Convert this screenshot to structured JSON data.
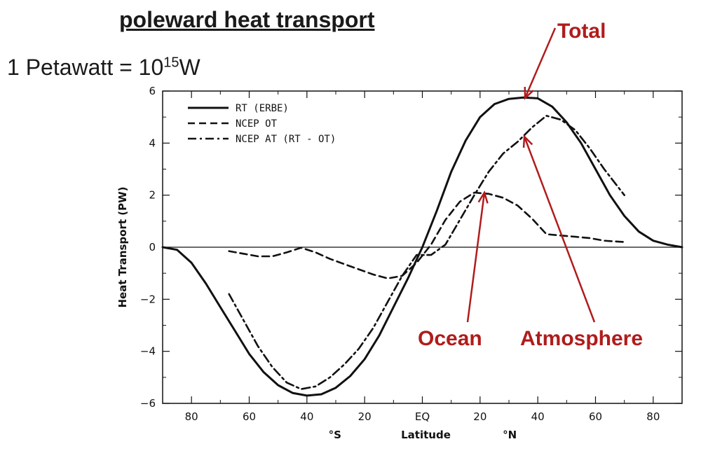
{
  "header": {
    "title": "poleward heat transport",
    "unit_prefix": "1 Petawatt = 10",
    "unit_exp": "15",
    "unit_suffix": "W"
  },
  "chart_data": {
    "type": "line",
    "xlabel": "Latitude",
    "ylabel": "Heat Transport (PW)",
    "xlim": [
      -90,
      90
    ],
    "ylim": [
      -6,
      6
    ],
    "x_tick_labels": [
      "80",
      "60",
      "40",
      "20",
      "EQ",
      "20",
      "40",
      "60",
      "80"
    ],
    "y_tick_labels": [
      "6",
      "4",
      "2",
      "0",
      "-2",
      "-4",
      "-6"
    ],
    "hemisphere_labels": [
      "°S",
      "°N"
    ],
    "zero_line": true,
    "legend": "top-left",
    "series": [
      {
        "name": "RT (ERBE)",
        "style": "solid",
        "x": [
          -90,
          -85,
          -80,
          -75,
          -70,
          -65,
          -60,
          -55,
          -50,
          -45,
          -40,
          -35,
          -30,
          -25,
          -20,
          -15,
          -10,
          -5,
          0,
          5,
          10,
          15,
          20,
          25,
          30,
          35,
          40,
          45,
          50,
          55,
          60,
          65,
          70,
          75,
          80,
          85,
          90
        ],
        "y": [
          0,
          -0.1,
          -0.6,
          -1.4,
          -2.3,
          -3.2,
          -4.1,
          -4.8,
          -5.3,
          -5.6,
          -5.7,
          -5.65,
          -5.4,
          -4.95,
          -4.3,
          -3.4,
          -2.3,
          -1.2,
          0,
          1.4,
          2.9,
          4.1,
          5.0,
          5.5,
          5.7,
          5.75,
          5.72,
          5.4,
          4.8,
          4.0,
          3.0,
          2.0,
          1.2,
          0.6,
          0.25,
          0.1,
          0
        ]
      },
      {
        "name": "NCEP OT",
        "style": "dashed",
        "x": [
          -67,
          -62,
          -57,
          -52,
          -47,
          -42,
          -37,
          -32,
          -27,
          -22,
          -17,
          -12,
          -7,
          -2,
          3,
          8,
          13,
          18,
          23,
          28,
          33,
          38,
          43,
          48,
          53,
          58,
          63,
          70
        ],
        "y": [
          -0.15,
          -0.25,
          -0.35,
          -0.35,
          -0.2,
          -0.02,
          -0.2,
          -0.45,
          -0.65,
          -0.85,
          -1.05,
          -1.2,
          -1.1,
          -0.6,
          0.1,
          1.05,
          1.75,
          2.1,
          2.05,
          1.9,
          1.6,
          1.1,
          0.5,
          0.45,
          0.4,
          0.35,
          0.25,
          0.2
        ]
      },
      {
        "name": "NCEP AT (RT - OT)",
        "style": "dashdot",
        "x": [
          -67,
          -62,
          -57,
          -52,
          -47,
          -42,
          -37,
          -32,
          -27,
          -22,
          -17,
          -12,
          -7,
          -2,
          3,
          8,
          13,
          18,
          23,
          28,
          33,
          38,
          43,
          48,
          53,
          58,
          63,
          70
        ],
        "y": [
          -1.8,
          -2.8,
          -3.8,
          -4.6,
          -5.2,
          -5.45,
          -5.35,
          -5.0,
          -4.5,
          -3.9,
          -3.1,
          -2.1,
          -1.1,
          -0.3,
          -0.3,
          0.1,
          1.05,
          2.0,
          2.9,
          3.6,
          4.05,
          4.6,
          5.05,
          4.9,
          4.5,
          3.8,
          3.0,
          2.0
        ]
      }
    ]
  },
  "annotations": {
    "total": "Total",
    "ocean": "Ocean",
    "atmosphere": "Atmosphere",
    "color": "#b01c1c"
  }
}
